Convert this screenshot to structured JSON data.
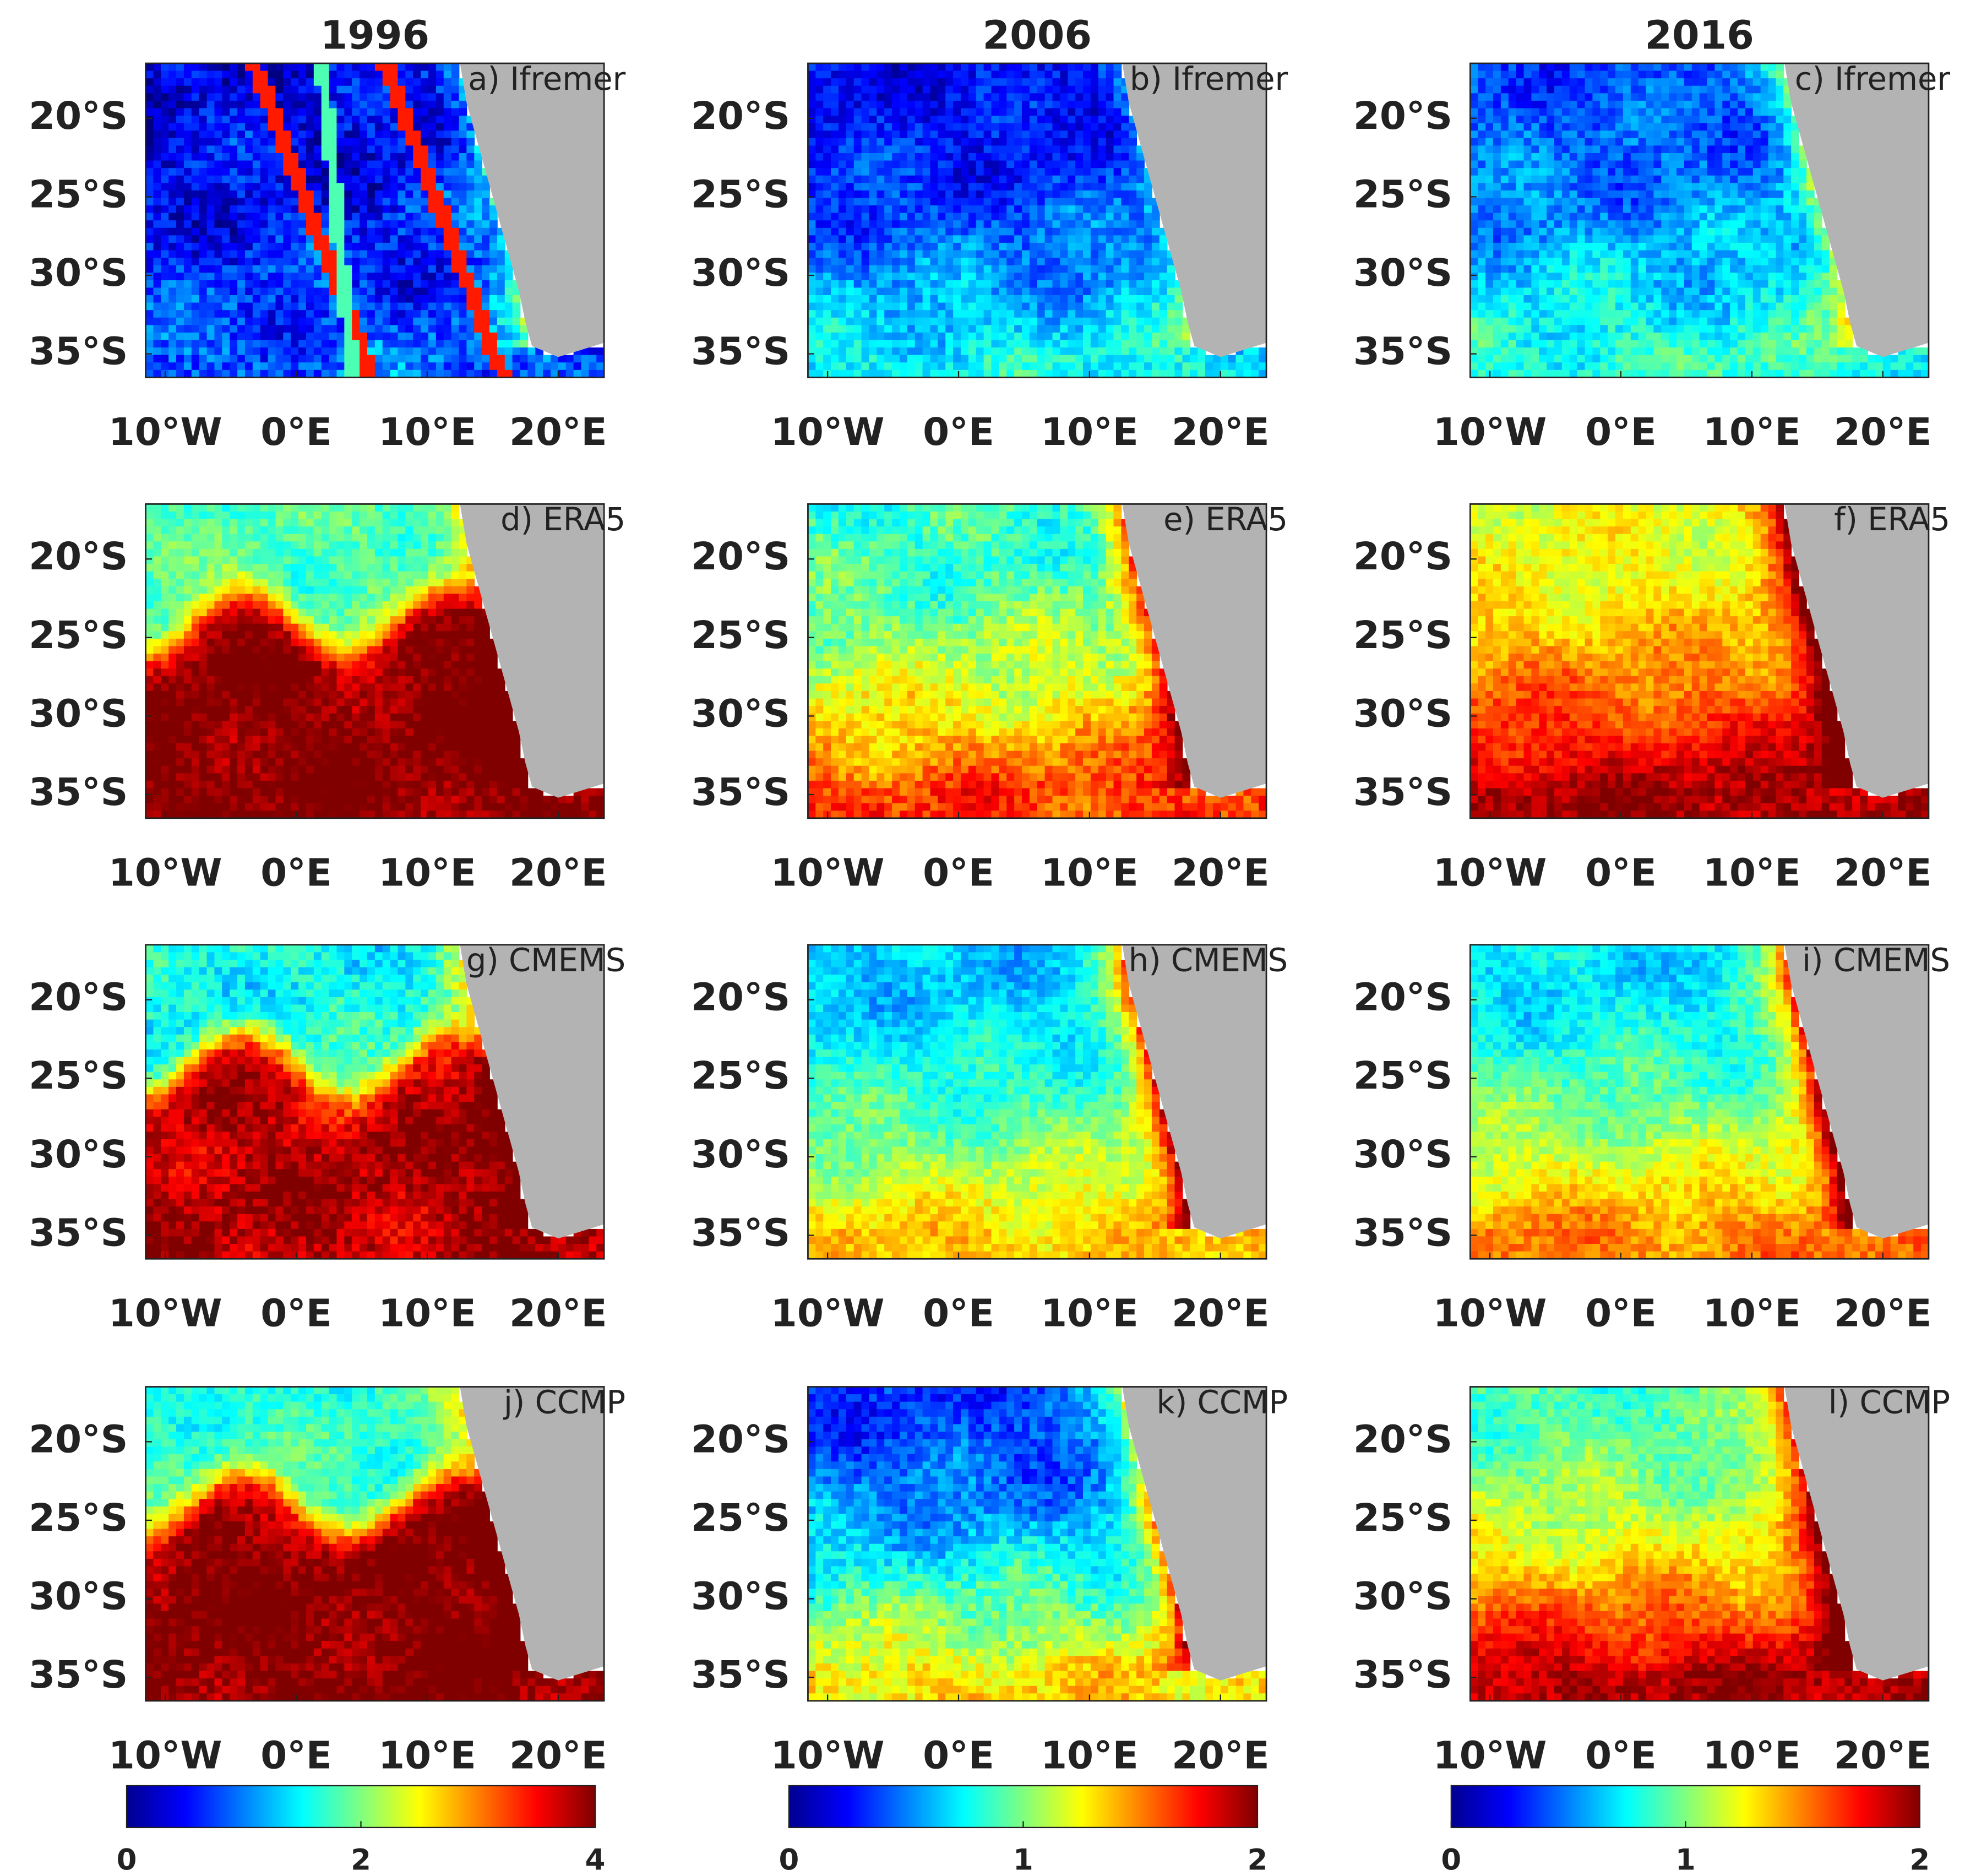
{
  "chart_data": [
    {
      "type": "heatmap",
      "title": "1996",
      "panels": [
        {
          "label": "a) Ifremer"
        },
        {
          "label": "d) ERA5"
        },
        {
          "label": "g) CMEMS"
        },
        {
          "label": "j) CCMP"
        }
      ],
      "xlim": [
        -11.5,
        23.5
      ],
      "xticks": [
        {
          "value": -10,
          "label": "10°W"
        },
        {
          "value": 0,
          "label": "0°E"
        },
        {
          "value": 10,
          "label": "10°E"
        },
        {
          "value": 20,
          "label": "20°E"
        }
      ],
      "ylim": [
        -36.5,
        -16.5
      ],
      "yticks": [
        {
          "value": -20,
          "label": "20°S"
        },
        {
          "value": -25,
          "label": "25°S"
        },
        {
          "value": -30,
          "label": "30°S"
        },
        {
          "value": -35,
          "label": "35°S"
        }
      ],
      "colorbar": {
        "lim": [
          0,
          4
        ],
        "ticks": [
          0,
          2,
          4
        ]
      }
    },
    {
      "type": "heatmap",
      "title": "2006",
      "panels": [
        {
          "label": "b) Ifremer"
        },
        {
          "label": "e) ERA5"
        },
        {
          "label": "h) CMEMS"
        },
        {
          "label": "k) CCMP"
        }
      ],
      "xlim": [
        -11.5,
        23.5
      ],
      "xticks": [
        {
          "value": -10,
          "label": "10°W"
        },
        {
          "value": 0,
          "label": "0°E"
        },
        {
          "value": 10,
          "label": "10°E"
        },
        {
          "value": 20,
          "label": "20°E"
        }
      ],
      "ylim": [
        -36.5,
        -16.5
      ],
      "yticks": [
        {
          "value": -20,
          "label": "20°S"
        },
        {
          "value": -25,
          "label": "25°S"
        },
        {
          "value": -30,
          "label": "30°S"
        },
        {
          "value": -35,
          "label": "35°S"
        }
      ],
      "colorbar": {
        "lim": [
          0,
          2
        ],
        "ticks": [
          0,
          1,
          2
        ]
      }
    },
    {
      "type": "heatmap",
      "title": "2016",
      "panels": [
        {
          "label": "c) Ifremer"
        },
        {
          "label": "f) ERA5"
        },
        {
          "label": "i) CMEMS"
        },
        {
          "label": "l) CCMP"
        }
      ],
      "xlim": [
        -11.5,
        23.5
      ],
      "xticks": [
        {
          "value": -10,
          "label": "10°W"
        },
        {
          "value": 0,
          "label": "0°E"
        },
        {
          "value": 10,
          "label": "10°E"
        },
        {
          "value": 20,
          "label": "20°E"
        }
      ],
      "ylim": [
        -36.5,
        -16.5
      ],
      "yticks": [
        {
          "value": -20,
          "label": "20°S"
        },
        {
          "value": -25,
          "label": "25°S"
        },
        {
          "value": -30,
          "label": "30°S"
        },
        {
          "value": -35,
          "label": "35°S"
        }
      ],
      "colorbar": {
        "lim": [
          0,
          2
        ],
        "ticks": [
          0,
          1,
          2
        ]
      }
    }
  ]
}
